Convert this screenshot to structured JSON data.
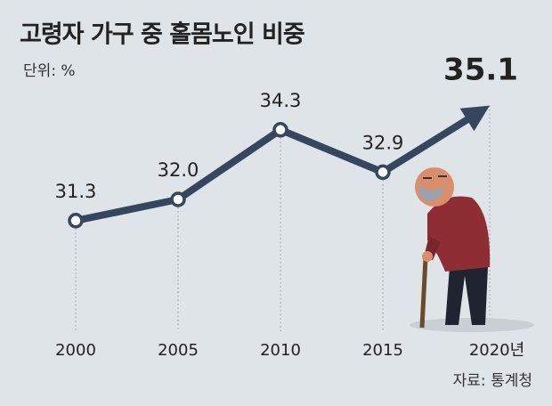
{
  "chart_data": {
    "type": "line",
    "title": "고령자 가구 중 홀몸노인 비중",
    "subtitle": "단위: %",
    "source": "자료: 통계청",
    "categories": [
      "2000",
      "2005",
      "2010",
      "2015",
      "2020년"
    ],
    "values": [
      31.3,
      32.0,
      34.3,
      32.9,
      35.1
    ],
    "value_labels": [
      "31.3",
      "32.0",
      "34.3",
      "32.9",
      "35.1"
    ],
    "color": "#36465f",
    "ylim": [
      30,
      36
    ],
    "grid": false
  }
}
